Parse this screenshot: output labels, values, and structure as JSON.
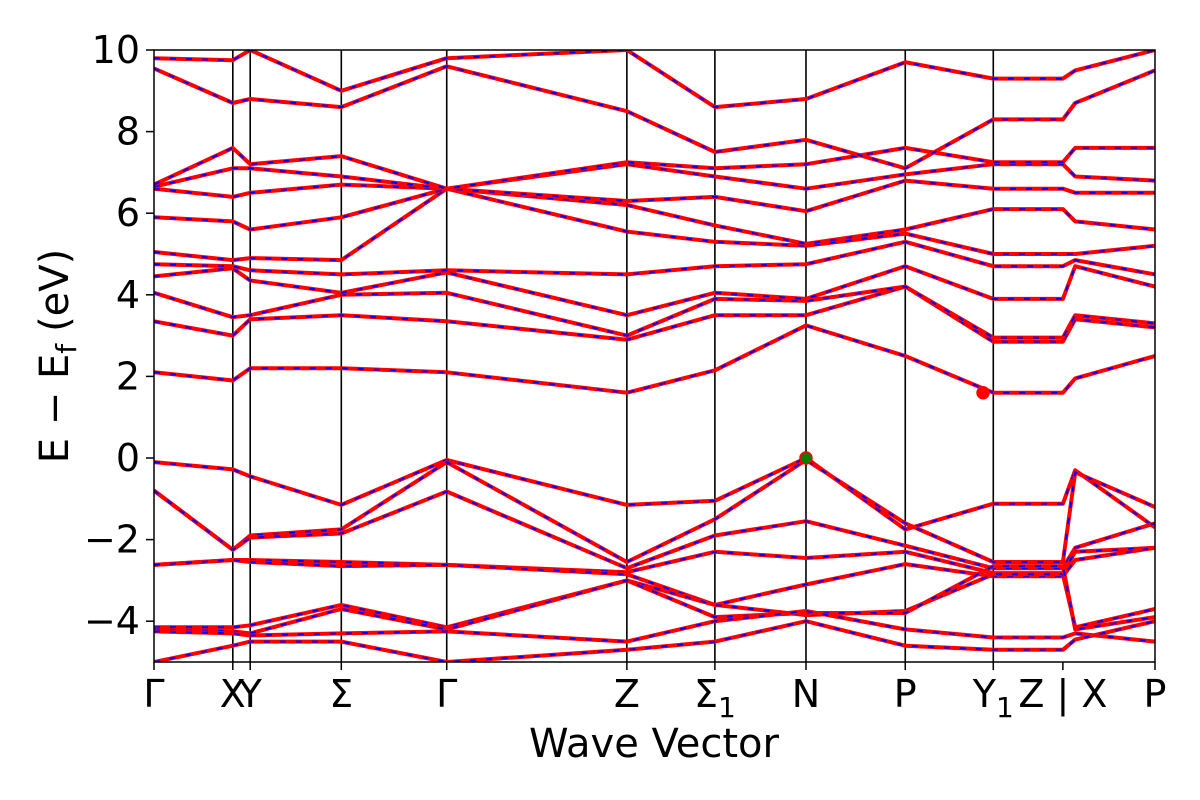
{
  "chart_data": {
    "type": "line",
    "title": "",
    "xlabel": "Wave Vector",
    "ylabel": "E − E",
    "ylabel_subscript": "f",
    "ylabel_unit": "(eV)",
    "ylim": [
      -5,
      10
    ],
    "yticks": [
      -4,
      -2,
      0,
      2,
      4,
      6,
      8,
      10
    ],
    "grid": false,
    "k_path": {
      "points": [
        {
          "label": "Γ",
          "k": 0.0
        },
        {
          "label": "X",
          "k": 0.77
        },
        {
          "label": "Y",
          "k": 0.94
        },
        {
          "label": "Σ",
          "k": 1.83
        },
        {
          "label": "Γ",
          "k": 2.86
        },
        {
          "label": "Z",
          "k": 4.62
        },
        {
          "label": "Σ",
          "sub": "1",
          "k": 5.48
        },
        {
          "label": "N",
          "k": 6.37
        },
        {
          "label": "P",
          "k": 7.34
        },
        {
          "label": "Y",
          "sub": "1",
          "k": 8.2
        },
        {
          "label": "Z | X",
          "k": 8.88
        },
        {
          "label": "P",
          "k": 9.78
        }
      ],
      "vertical_lines_at": [
        0.77,
        0.94,
        1.83,
        2.86,
        4.62,
        5.48,
        6.37,
        7.34,
        8.2
      ]
    },
    "series_styles": {
      "reference_color": "#ff0000",
      "overlay_color": "#0000ff",
      "overlay_dash": "dashed"
    },
    "bands": [
      {
        "k": [
          0,
          0.77,
          0.94,
          1.83,
          2.86,
          4.62,
          5.48,
          6.37,
          7.34,
          8.2,
          8.88,
          9.0,
          9.78
        ],
        "E": [
          -0.1,
          -0.28,
          -0.45,
          -1.15,
          -0.05,
          -1.15,
          -1.05,
          0.0,
          -1.75,
          -1.12,
          -1.12,
          -0.3,
          -1.7
        ]
      },
      {
        "k": [
          0,
          0.77,
          0.94,
          1.83,
          2.86,
          4.62,
          5.48,
          6.37,
          7.34,
          8.2,
          8.88,
          9.0,
          9.78
        ],
        "E": [
          -0.8,
          -2.25,
          -1.9,
          -1.75,
          -0.1,
          -2.55,
          -1.5,
          -0.05,
          -1.6,
          -2.55,
          -2.55,
          -0.35,
          -1.2
        ]
      },
      {
        "k": [
          0,
          0.77,
          0.94,
          1.83,
          2.86,
          4.62,
          5.48,
          6.37,
          7.34,
          8.2,
          8.88,
          9.0,
          9.78
        ],
        "E": [
          -0.8,
          -2.25,
          -1.95,
          -1.85,
          -0.82,
          -2.7,
          -1.9,
          -1.55,
          -2.15,
          -2.7,
          -2.7,
          -2.2,
          -1.6
        ]
      },
      {
        "k": [
          0,
          0.77,
          0.94,
          1.83,
          2.86,
          4.62,
          5.48,
          6.37,
          7.34,
          8.2,
          8.88,
          9.0,
          9.78
        ],
        "E": [
          -2.62,
          -2.5,
          -2.5,
          -2.55,
          -2.62,
          -2.8,
          -2.3,
          -2.45,
          -2.3,
          -2.82,
          -2.82,
          -2.3,
          -2.2
        ]
      },
      {
        "k": [
          0,
          0.77,
          0.94,
          1.83,
          2.86,
          4.62,
          5.48,
          6.37,
          7.34,
          8.2,
          8.88,
          9.0,
          9.78
        ],
        "E": [
          -2.62,
          -2.5,
          -2.55,
          -2.65,
          -2.62,
          -2.85,
          -3.6,
          -3.1,
          -2.6,
          -2.9,
          -2.9,
          -2.5,
          -2.2
        ]
      },
      {
        "k": [
          0,
          0.77,
          0.94,
          1.83,
          2.86,
          4.62,
          5.48,
          6.37,
          7.34,
          8.2,
          8.88,
          9.0,
          9.78
        ],
        "E": [
          -4.15,
          -4.15,
          -4.1,
          -3.6,
          -4.15,
          -3.0,
          -3.6,
          -3.85,
          -3.75,
          -2.85,
          -2.85,
          -4.15,
          -3.7
        ]
      },
      {
        "k": [
          0,
          0.77,
          0.94,
          1.83,
          2.86,
          4.62,
          5.48,
          6.37,
          7.34,
          8.2,
          8.88,
          9.0,
          9.78
        ],
        "E": [
          -4.2,
          -4.25,
          -4.3,
          -3.7,
          -4.2,
          -3.0,
          -3.9,
          -3.8,
          -3.8,
          -2.65,
          -2.65,
          -4.2,
          -3.9
        ]
      },
      {
        "k": [
          0,
          0.77,
          0.94,
          1.83,
          2.86,
          4.62,
          5.48,
          6.37,
          7.34,
          8.2,
          8.88,
          9.0,
          9.78
        ],
        "E": [
          -4.25,
          -4.3,
          -4.35,
          -4.3,
          -4.25,
          -4.5,
          -4.0,
          -3.75,
          -4.2,
          -4.4,
          -4.4,
          -4.3,
          -4.5
        ]
      },
      {
        "k": [
          0,
          0.77,
          0.94,
          1.83,
          2.86,
          4.62,
          5.48,
          6.37,
          7.34,
          8.2,
          8.88,
          9.0,
          9.78
        ],
        "E": [
          -5.0,
          -4.6,
          -4.5,
          -4.5,
          -5.0,
          -4.7,
          -4.5,
          -4.0,
          -4.6,
          -4.7,
          -4.7,
          -4.45,
          -4.0
        ]
      },
      {
        "k": [
          0,
          0.77,
          0.94,
          1.83,
          2.86,
          4.62,
          5.48,
          6.37,
          7.34,
          8.2,
          8.88,
          9.0,
          9.78
        ],
        "E": [
          2.1,
          1.9,
          2.2,
          2.2,
          2.1,
          1.6,
          2.15,
          3.25,
          2.5,
          1.6,
          1.6,
          1.95,
          2.5
        ]
      },
      {
        "k": [
          0,
          0.77,
          0.94,
          1.83,
          2.86,
          4.62,
          5.48,
          6.37,
          7.34,
          8.2,
          8.88,
          9.0,
          9.78
        ],
        "E": [
          3.35,
          3.0,
          3.4,
          3.5,
          3.35,
          2.9,
          3.5,
          3.5,
          4.2,
          2.85,
          2.85,
          3.4,
          3.2
        ]
      },
      {
        "k": [
          0,
          0.77,
          0.94,
          1.83,
          2.86,
          4.62,
          5.48,
          6.37,
          7.34,
          8.2,
          8.88,
          9.0,
          9.78
        ],
        "E": [
          4.05,
          3.45,
          3.5,
          4.0,
          4.05,
          3.0,
          3.9,
          3.85,
          4.2,
          2.95,
          2.95,
          3.5,
          3.3
        ]
      },
      {
        "k": [
          0,
          0.77,
          0.94,
          1.83,
          2.86,
          4.62,
          5.48,
          6.37,
          7.34,
          8.2,
          8.88,
          9.0,
          9.78
        ],
        "E": [
          4.45,
          4.65,
          4.35,
          4.05,
          4.55,
          3.5,
          4.05,
          3.9,
          4.7,
          3.9,
          3.9,
          4.7,
          4.2
        ]
      },
      {
        "k": [
          0,
          0.77,
          0.94,
          1.83,
          2.86,
          4.62,
          5.48,
          6.37,
          7.34,
          8.2,
          8.88,
          9.0,
          9.78
        ],
        "E": [
          4.75,
          4.7,
          4.6,
          4.5,
          4.6,
          4.5,
          4.7,
          4.75,
          5.3,
          4.7,
          4.7,
          4.85,
          4.5
        ]
      },
      {
        "k": [
          0,
          0.77,
          0.94,
          1.83,
          2.86,
          4.62,
          5.48,
          6.37,
          7.34,
          8.2,
          8.88,
          9.0,
          9.78
        ],
        "E": [
          5.05,
          4.85,
          4.9,
          4.85,
          6.6,
          5.55,
          5.3,
          5.2,
          5.5,
          5.0,
          5.0,
          5.0,
          5.2
        ]
      },
      {
        "k": [
          0,
          0.77,
          0.94,
          1.83,
          2.86,
          4.62,
          5.48,
          6.37,
          7.34,
          8.2,
          8.88,
          9.0,
          9.78
        ],
        "E": [
          5.9,
          5.8,
          5.6,
          5.9,
          6.6,
          6.2,
          5.7,
          5.25,
          5.6,
          6.1,
          6.1,
          5.8,
          5.6
        ]
      },
      {
        "k": [
          0,
          0.77,
          0.94,
          1.83,
          2.86,
          4.62,
          5.48,
          6.37,
          7.34,
          8.2,
          8.88,
          9.0,
          9.78
        ],
        "E": [
          6.6,
          6.4,
          6.5,
          6.7,
          6.6,
          6.3,
          6.4,
          6.05,
          6.8,
          6.6,
          6.6,
          6.5,
          6.5
        ]
      },
      {
        "k": [
          0,
          0.77,
          0.94,
          1.83,
          2.86,
          4.62,
          5.48,
          6.37,
          7.34,
          8.2,
          8.88,
          9.0,
          9.78
        ],
        "E": [
          6.65,
          7.1,
          7.1,
          6.9,
          6.6,
          7.2,
          6.9,
          6.6,
          6.95,
          7.2,
          7.2,
          6.9,
          6.8
        ]
      },
      {
        "k": [
          0,
          0.77,
          0.94,
          1.83,
          2.86,
          4.62,
          5.48,
          6.37,
          7.34,
          8.2,
          8.88,
          9.0,
          9.78
        ],
        "E": [
          6.7,
          7.6,
          7.2,
          7.4,
          6.6,
          7.25,
          7.1,
          7.2,
          7.6,
          7.25,
          7.25,
          7.6,
          7.6
        ]
      },
      {
        "k": [
          0,
          0.77,
          0.94,
          1.83,
          2.86,
          4.62,
          5.48,
          6.37,
          7.34,
          8.2,
          8.88,
          9.0,
          9.78
        ],
        "E": [
          9.55,
          8.7,
          8.8,
          8.6,
          9.6,
          8.5,
          7.5,
          7.8,
          7.1,
          8.3,
          8.3,
          8.7,
          9.5
        ]
      },
      {
        "k": [
          0,
          0.77,
          0.94,
          1.83,
          2.86,
          4.62,
          5.48,
          6.37,
          7.34,
          8.2,
          8.88,
          9.0,
          9.78
        ],
        "E": [
          9.8,
          9.75,
          10.0,
          9.0,
          9.8,
          10.0,
          8.6,
          8.8,
          9.7,
          9.3,
          9.3,
          9.5,
          10.0
        ]
      }
    ],
    "markers": [
      {
        "k": 6.37,
        "E": 0.0,
        "color": "#008000",
        "edge": "#ff0000"
      },
      {
        "k": 8.1,
        "E": 1.6,
        "color": "#ff0000",
        "edge": "#ff0000"
      }
    ]
  }
}
